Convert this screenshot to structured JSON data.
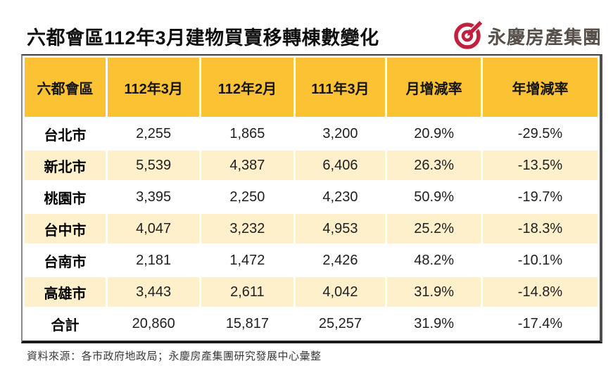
{
  "title": "六都會區112年3月建物買賣移轉棟數變化",
  "logo": {
    "name": "永慶房產集團",
    "icon": "yungching-bullseye-icon",
    "icon_color": "#C2203E",
    "text_color": "#57504A"
  },
  "chart_data": {
    "type": "table",
    "title": "六都會區112年3月建物買賣移轉棟數變化",
    "columns": [
      "六都會區",
      "112年3月",
      "112年2月",
      "111年3月",
      "月增減率",
      "年增減率"
    ],
    "rows": [
      [
        "台北市",
        "2,255",
        "1,865",
        "3,200",
        "20.9%",
        "-29.5%"
      ],
      [
        "新北市",
        "5,539",
        "4,387",
        "6,406",
        "26.3%",
        "-13.5%"
      ],
      [
        "桃園市",
        "3,395",
        "2,250",
        "4,230",
        "50.9%",
        "-19.7%"
      ],
      [
        "台中市",
        "4,047",
        "3,232",
        "4,953",
        "25.2%",
        "-18.3%"
      ],
      [
        "台南市",
        "2,181",
        "1,472",
        "2,426",
        "48.2%",
        "-10.1%"
      ],
      [
        "高雄市",
        "3,443",
        "2,611",
        "4,042",
        "31.9%",
        "-14.8%"
      ],
      [
        "合計",
        "20,860",
        "15,817",
        "25,257",
        "31.9%",
        "-17.4%"
      ]
    ],
    "layout": {
      "header_bg": "#FBC333",
      "alt_row_bg": "#FDF0CB",
      "row_bg": "#FFFFFF",
      "alternating": true
    }
  },
  "footer": {
    "source": "資料來源：各市政府地政局；永慶房產集團研究發展中心彙整"
  },
  "colors": {
    "header_bg": "#FBC333",
    "alt_row_bg": "#FDF0CB",
    "logo_red": "#C2203E",
    "logo_text": "#57504A",
    "title_text": "#0F0F0F",
    "footer_text": "#3A3A3A"
  }
}
